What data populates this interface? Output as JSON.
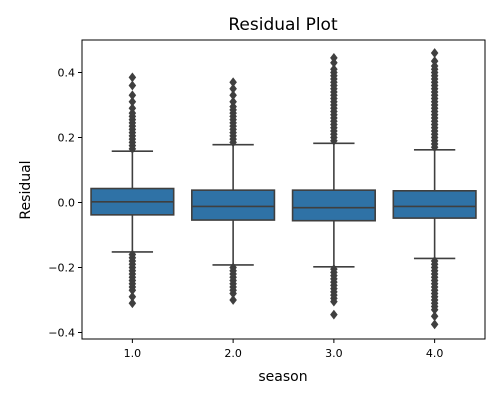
{
  "chart_data": {
    "type": "box",
    "title": "Residual Plot",
    "xlabel": "season",
    "ylabel": "Residual",
    "categories": [
      "1.0",
      "2.0",
      "3.0",
      "4.0"
    ],
    "ylim": [
      -0.42,
      0.5
    ],
    "yticks": [
      -0.4,
      -0.2,
      0.0,
      0.2,
      0.4
    ],
    "ytick_labels": [
      "−0.4",
      "−0.2",
      "0.0",
      "0.2",
      "0.4"
    ],
    "grid": false,
    "legend": "none",
    "box_color": "#2f72a6",
    "line_color": "#3f3f3f",
    "boxes": [
      {
        "category": "1.0",
        "whisker_low": -0.152,
        "q1": -0.038,
        "median": 0.002,
        "q3": 0.043,
        "whisker_high": 0.158,
        "outliers_high": [
          0.165,
          0.175,
          0.185,
          0.195,
          0.205,
          0.215,
          0.225,
          0.235,
          0.245,
          0.255,
          0.265,
          0.275,
          0.29,
          0.31,
          0.33,
          0.36,
          0.385
        ],
        "outliers_low": [
          -0.16,
          -0.17,
          -0.18,
          -0.19,
          -0.2,
          -0.21,
          -0.22,
          -0.23,
          -0.24,
          -0.25,
          -0.26,
          -0.27,
          -0.29,
          -0.31
        ]
      },
      {
        "category": "2.0",
        "whisker_low": -0.192,
        "q1": -0.054,
        "median": -0.012,
        "q3": 0.038,
        "whisker_high": 0.178,
        "outliers_high": [
          0.185,
          0.195,
          0.205,
          0.215,
          0.225,
          0.235,
          0.245,
          0.255,
          0.265,
          0.275,
          0.285,
          0.295,
          0.31,
          0.33,
          0.35,
          0.37
        ],
        "outliers_low": [
          -0.2,
          -0.21,
          -0.22,
          -0.23,
          -0.24,
          -0.25,
          -0.26,
          -0.27,
          -0.28,
          -0.3
        ]
      },
      {
        "category": "3.0",
        "whisker_low": -0.198,
        "q1": -0.056,
        "median": -0.016,
        "q3": 0.038,
        "whisker_high": 0.182,
        "outliers_high": [
          0.19,
          0.2,
          0.21,
          0.22,
          0.23,
          0.24,
          0.25,
          0.26,
          0.27,
          0.28,
          0.29,
          0.3,
          0.31,
          0.32,
          0.33,
          0.34,
          0.35,
          0.36,
          0.37,
          0.38,
          0.39,
          0.4,
          0.41,
          0.43,
          0.445
        ],
        "outliers_low": [
          -0.205,
          -0.215,
          -0.225,
          -0.235,
          -0.245,
          -0.255,
          -0.265,
          -0.275,
          -0.285,
          -0.295,
          -0.305,
          -0.345
        ]
      },
      {
        "category": "4.0",
        "whisker_low": -0.172,
        "q1": -0.048,
        "median": -0.012,
        "q3": 0.036,
        "whisker_high": 0.162,
        "outliers_high": [
          0.17,
          0.18,
          0.19,
          0.2,
          0.21,
          0.22,
          0.23,
          0.24,
          0.25,
          0.26,
          0.27,
          0.28,
          0.29,
          0.3,
          0.31,
          0.32,
          0.33,
          0.34,
          0.35,
          0.36,
          0.37,
          0.38,
          0.39,
          0.4,
          0.41,
          0.42,
          0.435,
          0.46
        ],
        "outliers_low": [
          -0.18,
          -0.19,
          -0.2,
          -0.21,
          -0.22,
          -0.23,
          -0.24,
          -0.25,
          -0.26,
          -0.27,
          -0.28,
          -0.29,
          -0.3,
          -0.31,
          -0.32,
          -0.33,
          -0.35,
          -0.375
        ]
      }
    ]
  }
}
